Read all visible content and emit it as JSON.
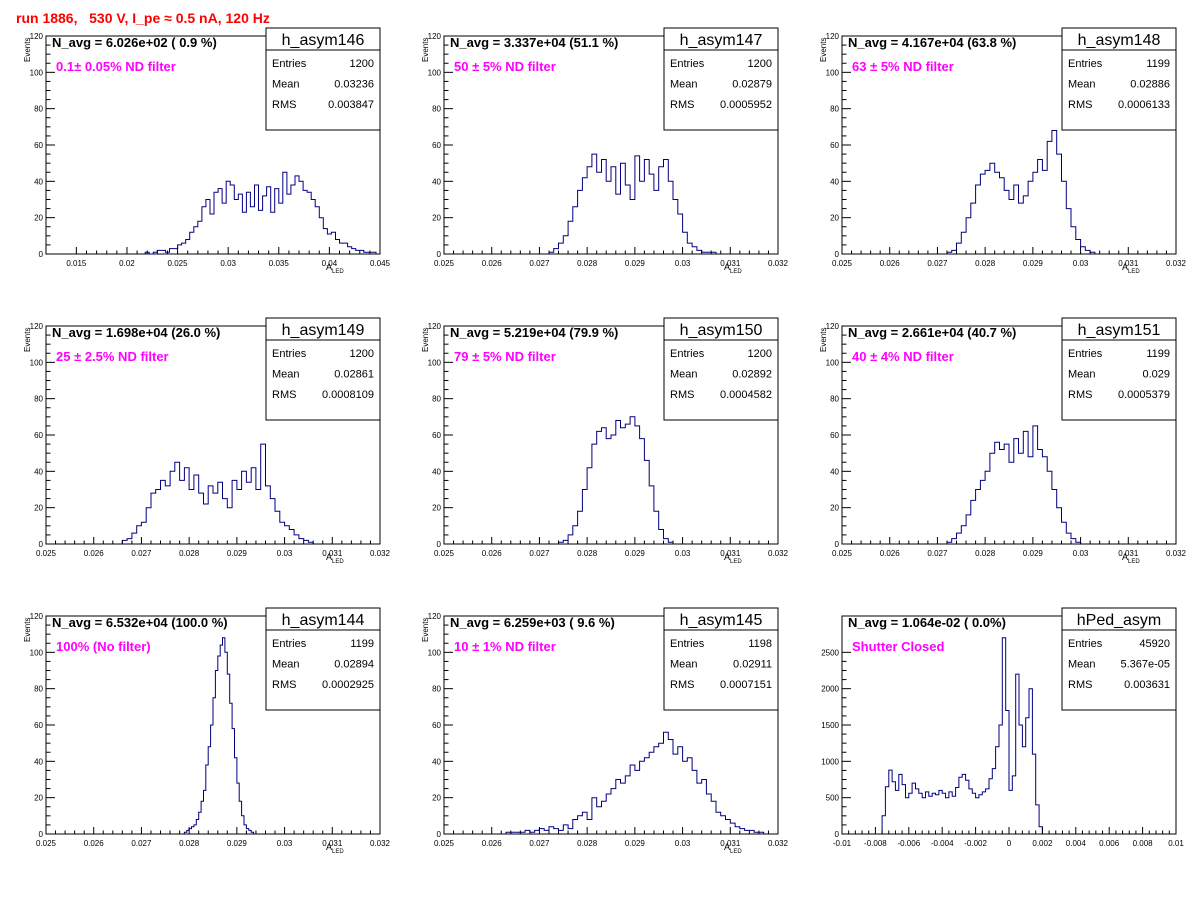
{
  "header": {
    "title": "run 1886,   530 V, I_pe ≈ 0.5 nA, 120 Hz"
  },
  "colors": {
    "histogram_line": "#000080",
    "filter_label": "#ff00ff",
    "title": "#ff0000"
  },
  "chart_data": [
    {
      "type": "histogram",
      "name": "h_asym146",
      "navg": "N_avg = 6.026e+02 ( 0.9 %)",
      "filter_label": "0.1± 0.05% ND filter",
      "stats": {
        "entries_label": "Entries",
        "entries": "1200",
        "mean_label": "Mean",
        "mean": "0.03236",
        "rms_label": "RMS",
        "rms": "0.003847"
      },
      "xlabel_main": "A",
      "xlabel_sub": "LED",
      "ylabel": "Events",
      "xlim": [
        0.012,
        0.045
      ],
      "ylim": [
        0,
        120
      ],
      "xticks": [
        {
          "v": 0.015,
          "label": "0.015"
        },
        {
          "v": 0.02,
          "label": "0.02"
        },
        {
          "v": 0.025,
          "label": "0.025"
        },
        {
          "v": 0.03,
          "label": "0.03"
        },
        {
          "v": 0.035,
          "label": "0.035"
        },
        {
          "v": 0.04,
          "label": "0.04"
        },
        {
          "v": 0.045,
          "label": "0.045"
        }
      ],
      "yticks": [
        0,
        20,
        40,
        60,
        80,
        100,
        120
      ],
      "x_start": 0.0218,
      "bin_width": 0.0004,
      "values": [
        1,
        0,
        1,
        2,
        2,
        1,
        3,
        3,
        5,
        6,
        8,
        12,
        15,
        18,
        26,
        30,
        22,
        34,
        36,
        28,
        40,
        38,
        30,
        33,
        23,
        34,
        26,
        38,
        24,
        32,
        37,
        23,
        36,
        28,
        45,
        33,
        38,
        43,
        40,
        35,
        34,
        30,
        26,
        20,
        14,
        11,
        12,
        8,
        6,
        6,
        4,
        3,
        2,
        2,
        1,
        1,
        1
      ]
    },
    {
      "type": "histogram",
      "name": "h_asym147",
      "navg": "N_avg = 3.337e+04 (51.1 %)",
      "filter_label": "50 ± 5% ND filter",
      "stats": {
        "entries_label": "Entries",
        "entries": "1200",
        "mean_label": "Mean",
        "mean": "0.02879",
        "rms_label": "RMS",
        "rms": "0.0005952"
      },
      "xlabel_main": "A",
      "xlabel_sub": "LED",
      "ylabel": "Events",
      "xlim": [
        0.025,
        0.032
      ],
      "ylim": [
        0,
        120
      ],
      "xticks": [
        {
          "v": 0.025,
          "label": "0.025"
        },
        {
          "v": 0.026,
          "label": "0.026"
        },
        {
          "v": 0.027,
          "label": "0.027"
        },
        {
          "v": 0.028,
          "label": "0.028"
        },
        {
          "v": 0.029,
          "label": "0.029"
        },
        {
          "v": 0.03,
          "label": "0.03"
        },
        {
          "v": 0.031,
          "label": "0.031"
        },
        {
          "v": 0.032,
          "label": "0.032"
        }
      ],
      "yticks": [
        0,
        20,
        40,
        60,
        80,
        100,
        120
      ],
      "x_start": 0.0272,
      "bin_width": 0.0001,
      "values": [
        1,
        3,
        6,
        10,
        18,
        26,
        35,
        42,
        48,
        55,
        45,
        52,
        40,
        48,
        33,
        50,
        38,
        30,
        54,
        40,
        52,
        44,
        35,
        48,
        52,
        40,
        30,
        22,
        12,
        6,
        4,
        2,
        1,
        1,
        1
      ]
    },
    {
      "type": "histogram",
      "name": "h_asym148",
      "navg": "N_avg = 4.167e+04 (63.8 %)",
      "filter_label": "63 ± 5% ND filter",
      "stats": {
        "entries_label": "Entries",
        "entries": "1199",
        "mean_label": "Mean",
        "mean": "0.02886",
        "rms_label": "RMS",
        "rms": "0.0006133"
      },
      "xlabel_main": "A",
      "xlabel_sub": "LED",
      "ylabel": "Events",
      "xlim": [
        0.025,
        0.032
      ],
      "ylim": [
        0,
        120
      ],
      "xticks": [
        {
          "v": 0.025,
          "label": "0.025"
        },
        {
          "v": 0.026,
          "label": "0.026"
        },
        {
          "v": 0.027,
          "label": "0.027"
        },
        {
          "v": 0.028,
          "label": "0.028"
        },
        {
          "v": 0.029,
          "label": "0.029"
        },
        {
          "v": 0.03,
          "label": "0.03"
        },
        {
          "v": 0.031,
          "label": "0.031"
        },
        {
          "v": 0.032,
          "label": "0.032"
        }
      ],
      "yticks": [
        0,
        20,
        40,
        60,
        80,
        100,
        120
      ],
      "x_start": 0.0272,
      "bin_width": 0.0001,
      "values": [
        1,
        2,
        6,
        12,
        20,
        28,
        38,
        44,
        46,
        50,
        45,
        42,
        35,
        30,
        38,
        28,
        32,
        40,
        45,
        52,
        46,
        62,
        68,
        55,
        40,
        25,
        15,
        8,
        4,
        2,
        1
      ]
    },
    {
      "type": "histogram",
      "name": "h_asym149",
      "navg": "N_avg = 1.698e+04 (26.0 %)",
      "filter_label": "25 ± 2.5% ND filter",
      "stats": {
        "entries_label": "Entries",
        "entries": "1200",
        "mean_label": "Mean",
        "mean": "0.02861",
        "rms_label": "RMS",
        "rms": "0.0008109"
      },
      "xlabel_main": "A",
      "xlabel_sub": "LED",
      "ylabel": "Events",
      "xlim": [
        0.025,
        0.032
      ],
      "ylim": [
        0,
        120
      ],
      "xticks": [
        {
          "v": 0.025,
          "label": "0.025"
        },
        {
          "v": 0.026,
          "label": "0.026"
        },
        {
          "v": 0.027,
          "label": "0.027"
        },
        {
          "v": 0.028,
          "label": "0.028"
        },
        {
          "v": 0.029,
          "label": "0.029"
        },
        {
          "v": 0.03,
          "label": "0.03"
        },
        {
          "v": 0.031,
          "label": "0.031"
        },
        {
          "v": 0.032,
          "label": "0.032"
        }
      ],
      "yticks": [
        0,
        20,
        40,
        60,
        80,
        100,
        120
      ],
      "x_start": 0.0266,
      "bin_width": 0.0001,
      "values": [
        2,
        3,
        6,
        10,
        12,
        20,
        28,
        30,
        35,
        32,
        40,
        45,
        35,
        42,
        30,
        38,
        28,
        22,
        32,
        28,
        34,
        25,
        20,
        35,
        30,
        40,
        34,
        42,
        30,
        55,
        32,
        25,
        18,
        12,
        10,
        8,
        5,
        3,
        2,
        1
      ]
    },
    {
      "type": "histogram",
      "name": "h_asym150",
      "navg": "N_avg = 5.219e+04 (79.9 %)",
      "filter_label": "79 ± 5% ND filter",
      "stats": {
        "entries_label": "Entries",
        "entries": "1200",
        "mean_label": "Mean",
        "mean": "0.02892",
        "rms_label": "RMS",
        "rms": "0.0004582"
      },
      "xlabel_main": "A",
      "xlabel_sub": "LED",
      "ylabel": "Events",
      "xlim": [
        0.025,
        0.032
      ],
      "ylim": [
        0,
        120
      ],
      "xticks": [
        {
          "v": 0.025,
          "label": "0.025"
        },
        {
          "v": 0.026,
          "label": "0.026"
        },
        {
          "v": 0.027,
          "label": "0.027"
        },
        {
          "v": 0.028,
          "label": "0.028"
        },
        {
          "v": 0.029,
          "label": "0.029"
        },
        {
          "v": 0.03,
          "label": "0.03"
        },
        {
          "v": 0.031,
          "label": "0.031"
        },
        {
          "v": 0.032,
          "label": "0.032"
        }
      ],
      "yticks": [
        0,
        20,
        40,
        60,
        80,
        100,
        120
      ],
      "x_start": 0.0274,
      "bin_width": 0.0001,
      "values": [
        1,
        2,
        5,
        10,
        18,
        30,
        42,
        55,
        62,
        64,
        58,
        60,
        68,
        64,
        66,
        70,
        65,
        58,
        46,
        32,
        18,
        8,
        3,
        1
      ]
    },
    {
      "type": "histogram",
      "name": "h_asym151",
      "navg": "N_avg = 2.661e+04 (40.7 %)",
      "filter_label": "40 ± 4% ND filter",
      "stats": {
        "entries_label": "Entries",
        "entries": "1199",
        "mean_label": "Mean",
        "mean": "0.029",
        "rms_label": "RMS",
        "rms": "0.0005379"
      },
      "xlabel_main": "A",
      "xlabel_sub": "LED",
      "ylabel": "Events",
      "xlim": [
        0.025,
        0.032
      ],
      "ylim": [
        0,
        120
      ],
      "xticks": [
        {
          "v": 0.025,
          "label": "0.025"
        },
        {
          "v": 0.026,
          "label": "0.026"
        },
        {
          "v": 0.027,
          "label": "0.027"
        },
        {
          "v": 0.028,
          "label": "0.028"
        },
        {
          "v": 0.029,
          "label": "0.029"
        },
        {
          "v": 0.03,
          "label": "0.03"
        },
        {
          "v": 0.031,
          "label": "0.031"
        },
        {
          "v": 0.032,
          "label": "0.032"
        }
      ],
      "yticks": [
        0,
        20,
        40,
        60,
        80,
        100,
        120
      ],
      "x_start": 0.0272,
      "bin_width": 0.0001,
      "values": [
        1,
        3,
        6,
        10,
        16,
        24,
        30,
        35,
        40,
        50,
        56,
        52,
        55,
        45,
        58,
        50,
        62,
        48,
        65,
        52,
        48,
        40,
        30,
        20,
        12,
        6,
        3,
        1
      ]
    },
    {
      "type": "histogram",
      "name": "h_asym144",
      "navg": "N_avg = 6.532e+04 (100.0 %)",
      "filter_label": "100% (No filter)",
      "stats": {
        "entries_label": "Entries",
        "entries": "1199",
        "mean_label": "Mean",
        "mean": "0.02894",
        "rms_label": "RMS",
        "rms": "0.0002925"
      },
      "xlabel_main": "A",
      "xlabel_sub": "LED",
      "ylabel": "Events",
      "xlim": [
        0.025,
        0.032
      ],
      "ylim": [
        0,
        120
      ],
      "xticks": [
        {
          "v": 0.025,
          "label": "0.025"
        },
        {
          "v": 0.026,
          "label": "0.026"
        },
        {
          "v": 0.027,
          "label": "0.027"
        },
        {
          "v": 0.028,
          "label": "0.028"
        },
        {
          "v": 0.029,
          "label": "0.029"
        },
        {
          "v": 0.03,
          "label": "0.03"
        },
        {
          "v": 0.031,
          "label": "0.031"
        },
        {
          "v": 0.032,
          "label": "0.032"
        }
      ],
      "yticks": [
        0,
        20,
        40,
        60,
        80,
        100,
        120
      ],
      "x_start": 0.0279,
      "bin_width": 5e-05,
      "values": [
        1,
        2,
        3,
        4,
        5,
        8,
        12,
        18,
        24,
        38,
        48,
        60,
        75,
        90,
        98,
        104,
        108,
        100,
        88,
        72,
        58,
        42,
        28,
        18,
        10,
        5,
        3,
        2,
        1
      ]
    },
    {
      "type": "histogram",
      "name": "h_asym145",
      "navg": "N_avg = 6.259e+03 ( 9.6 %)",
      "filter_label": "10 ± 1% ND filter",
      "stats": {
        "entries_label": "Entries",
        "entries": "1198",
        "mean_label": "Mean",
        "mean": "0.02911",
        "rms_label": "RMS",
        "rms": "0.0007151"
      },
      "xlabel_main": "A",
      "xlabel_sub": "LED",
      "ylabel": "Events",
      "xlim": [
        0.025,
        0.032
      ],
      "ylim": [
        0,
        120
      ],
      "xticks": [
        {
          "v": 0.025,
          "label": "0.025"
        },
        {
          "v": 0.026,
          "label": "0.026"
        },
        {
          "v": 0.027,
          "label": "0.027"
        },
        {
          "v": 0.028,
          "label": "0.028"
        },
        {
          "v": 0.029,
          "label": "0.029"
        },
        {
          "v": 0.03,
          "label": "0.03"
        },
        {
          "v": 0.031,
          "label": "0.031"
        },
        {
          "v": 0.032,
          "label": "0.032"
        }
      ],
      "yticks": [
        0,
        20,
        40,
        60,
        80,
        100,
        120
      ],
      "x_start": 0.0263,
      "bin_width": 0.0001,
      "values": [
        1,
        1,
        1,
        1,
        2,
        1,
        2,
        3,
        2,
        4,
        3,
        2,
        5,
        3,
        8,
        10,
        12,
        8,
        20,
        15,
        18,
        22,
        25,
        30,
        28,
        32,
        38,
        35,
        40,
        42,
        45,
        48,
        50,
        56,
        52,
        44,
        48,
        40,
        42,
        35,
        28,
        30,
        22,
        18,
        12,
        10,
        8,
        6,
        4,
        3,
        2,
        2,
        1,
        1
      ]
    },
    {
      "type": "histogram",
      "name": "hPed_asym",
      "navg": "N_avg = 1.064e-02 ( 0.0%)",
      "filter_label": "Shutter Closed",
      "stats": {
        "entries_label": "Entries",
        "entries": "45920",
        "mean_label": "Mean",
        "mean": "5.367e-05",
        "rms_label": "RMS",
        "rms": "0.003631"
      },
      "xlabel_main": "",
      "xlabel_sub": "",
      "ylabel": "",
      "xlim": [
        -0.01,
        0.01
      ],
      "ylim": [
        0,
        3000
      ],
      "xticks": [
        {
          "v": -0.01,
          "label": "-0.01"
        },
        {
          "v": -0.008,
          "label": "-0.008"
        },
        {
          "v": -0.006,
          "label": "-0.006"
        },
        {
          "v": -0.004,
          "label": "-0.004"
        },
        {
          "v": -0.002,
          "label": "-0.002"
        },
        {
          "v": 0,
          "label": "0"
        },
        {
          "v": 0.002,
          "label": "0.002"
        },
        {
          "v": 0.004,
          "label": "0.004"
        },
        {
          "v": 0.006,
          "label": "0.006"
        },
        {
          "v": 0.008,
          "label": "0.008"
        },
        {
          "v": 0.01,
          "label": "0.01"
        }
      ],
      "yticks": [
        0,
        500,
        1000,
        1500,
        2000,
        2500
      ],
      "x_start": -0.0076,
      "bin_width": 0.0002,
      "values": [
        250,
        650,
        880,
        720,
        600,
        820,
        680,
        500,
        560,
        700,
        620,
        560,
        500,
        580,
        520,
        560,
        540,
        600,
        560,
        500,
        580,
        520,
        640,
        780,
        820,
        740,
        620,
        560,
        500,
        540,
        580,
        620,
        760,
        900,
        1200,
        1500,
        2700,
        1700,
        600,
        800,
        2200,
        1500,
        1200,
        1600,
        2000,
        1100,
        400,
        100
      ]
    }
  ]
}
